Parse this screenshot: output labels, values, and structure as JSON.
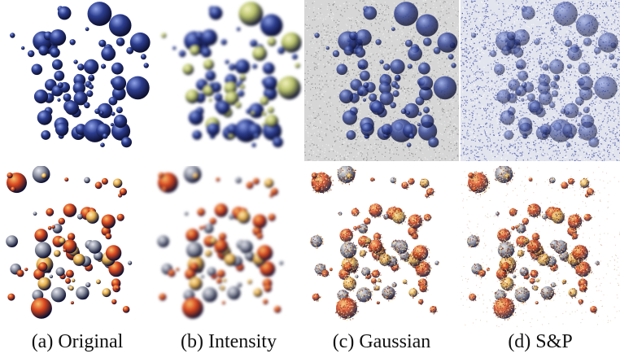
{
  "figure": {
    "captions": [
      "(a) Original",
      "(b) Intensity",
      "(c) Gaussian",
      "(d) S&P"
    ],
    "rows": [
      "blue-spheres",
      "orange-spheres"
    ],
    "colors": {
      "blue_sphere": "#2c3d8f",
      "blue_highlight": "#8fa3e8",
      "orange_sphere": "#d9451e",
      "orange_highlight": "#f6c06a",
      "yellow_sphere": "#e8b04a",
      "yellow_green": "#b9c36a",
      "gray_sphere": "#8e93a3",
      "noise_gray": "#9a9a9a",
      "noise_blue": "#3a4aa0",
      "background": "#ffffff"
    }
  }
}
